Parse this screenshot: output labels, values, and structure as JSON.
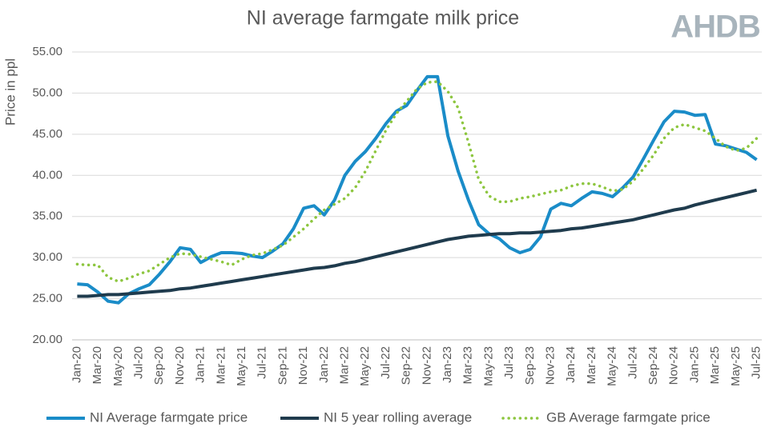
{
  "logo": "AHDB",
  "chart_data": {
    "type": "line",
    "title": "NI average farmgate milk price",
    "y_label": "Price in ppl",
    "categories": [
      "Jan-20",
      null,
      "Mar-20",
      null,
      "May-20",
      null,
      "Jul-20",
      null,
      "Sep-20",
      null,
      "Nov-20",
      null,
      "Jan-21",
      null,
      "Mar-21",
      null,
      "May-21",
      null,
      "Jul-21",
      null,
      "Sep-21",
      null,
      "Nov-21",
      null,
      "Jan-22",
      null,
      "Mar-22",
      null,
      "May-22",
      null,
      "Jul-22",
      null,
      "Sep-22",
      null,
      "Nov-22",
      null,
      "Jan-23",
      null,
      "Mar-23",
      null,
      "May-23",
      null,
      "Jul-23",
      null,
      "Sep-23",
      null,
      "Nov-23",
      null,
      "Jan-24",
      null,
      "Mar-24",
      null,
      "May-24",
      null,
      "Jul-24",
      null,
      "Sep-24",
      null,
      "Nov-24",
      null,
      "Jan-25",
      null,
      "Mar-25",
      null,
      "May-25",
      null,
      "Jul-25"
    ],
    "series": [
      {
        "name": "NI Average farmgate price",
        "color": "#1a8cc8",
        "style": "solid",
        "values": [
          26.8,
          26.7,
          25.8,
          24.7,
          24.5,
          25.6,
          26.2,
          26.7,
          28.0,
          29.5,
          31.2,
          31.0,
          29.4,
          30.1,
          30.6,
          30.6,
          30.5,
          30.2,
          30.0,
          30.8,
          31.7,
          33.5,
          36.0,
          36.3,
          35.2,
          37.0,
          40.0,
          41.7,
          42.9,
          44.5,
          46.3,
          47.8,
          48.5,
          50.3,
          52.0,
          52.0,
          44.8,
          40.5,
          37.0,
          34.0,
          32.9,
          32.3,
          31.2,
          30.6,
          31.0,
          32.5,
          35.9,
          36.6,
          36.3,
          37.2,
          38.0,
          37.8,
          37.4,
          38.5,
          39.8,
          42.0,
          44.3,
          46.5,
          47.8,
          47.7,
          47.3,
          47.4,
          43.8,
          43.6,
          43.2,
          42.8,
          41.9
        ]
      },
      {
        "name": "NI 5 year rolling average",
        "color": "#1f3b4d",
        "style": "solid",
        "values": [
          25.3,
          25.3,
          25.4,
          25.5,
          25.5,
          25.6,
          25.7,
          25.8,
          25.9,
          26.0,
          26.2,
          26.3,
          26.5,
          26.7,
          26.9,
          27.1,
          27.3,
          27.5,
          27.7,
          27.9,
          28.1,
          28.3,
          28.5,
          28.7,
          28.8,
          29.0,
          29.3,
          29.5,
          29.8,
          30.1,
          30.4,
          30.7,
          31.0,
          31.3,
          31.6,
          31.9,
          32.2,
          32.4,
          32.6,
          32.7,
          32.8,
          32.9,
          32.9,
          33.0,
          33.0,
          33.1,
          33.2,
          33.3,
          33.5,
          33.6,
          33.8,
          34.0,
          34.2,
          34.4,
          34.6,
          34.9,
          35.2,
          35.5,
          35.8,
          36.0,
          36.4,
          36.7,
          37.0,
          37.3,
          37.6,
          37.9,
          38.2
        ]
      },
      {
        "name": "GB Average farmgate price",
        "color": "#8dc63f",
        "style": "dotted",
        "values": [
          29.2,
          29.1,
          29.1,
          27.6,
          27.1,
          27.5,
          28.0,
          28.4,
          29.2,
          30.0,
          30.5,
          30.4,
          30.1,
          29.8,
          29.5,
          29.1,
          29.8,
          30.3,
          30.5,
          31.0,
          31.5,
          32.5,
          33.5,
          34.7,
          35.8,
          36.5,
          37.2,
          38.5,
          40.5,
          43.0,
          45.5,
          47.5,
          49.0,
          50.5,
          51.3,
          51.4,
          50.2,
          48.2,
          44.0,
          39.5,
          37.5,
          36.8,
          36.8,
          37.2,
          37.4,
          37.7,
          38.0,
          38.2,
          38.7,
          39.0,
          39.0,
          38.6,
          38.1,
          38.3,
          39.3,
          40.8,
          42.5,
          44.5,
          45.8,
          46.2,
          45.8,
          45.4,
          44.5,
          43.5,
          43.0,
          43.3,
          44.5
        ]
      }
    ],
    "ylim": [
      20,
      55
    ],
    "yticks": [
      {
        "value": 20,
        "label": "20.00"
      },
      {
        "value": 25,
        "label": "25.00"
      },
      {
        "value": 30,
        "label": "30.00"
      },
      {
        "value": 35,
        "label": "35.00"
      },
      {
        "value": 40,
        "label": "40.00"
      },
      {
        "value": 45,
        "label": "45.00"
      },
      {
        "value": 50,
        "label": "50.00"
      },
      {
        "value": 55,
        "label": "55.00"
      }
    ],
    "grid": true,
    "legend": "bottom"
  }
}
